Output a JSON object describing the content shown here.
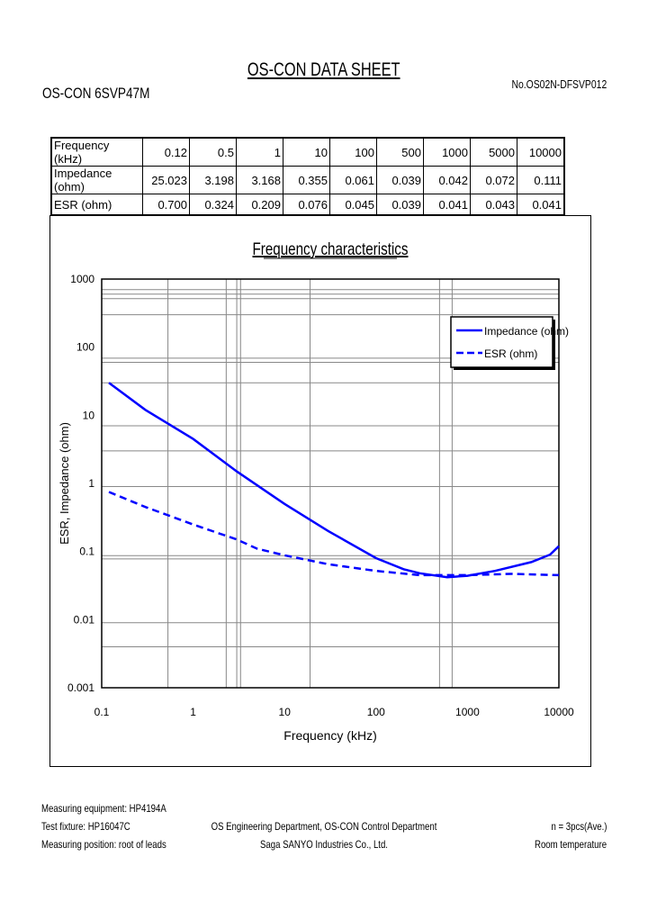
{
  "header": {
    "title": "OS-CON DATA SHEET",
    "model": "OS-CON 6SVP47M",
    "doc_no": "No.OS02N-DFSVP012"
  },
  "table": {
    "rows": [
      {
        "label": "Frequency (kHz)",
        "values": [
          "0.12",
          "0.5",
          "1",
          "10",
          "100",
          "500",
          "1000",
          "5000",
          "10000"
        ]
      },
      {
        "label": "Impedance (ohm)",
        "values": [
          "25.023",
          "3.198",
          "3.168",
          "0.355",
          "0.061",
          "0.039",
          "0.042",
          "0.072",
          "0.111"
        ]
      },
      {
        "label": "ESR (ohm)",
        "values": [
          "0.700",
          "0.324",
          "0.209",
          "0.076",
          "0.045",
          "0.039",
          "0.041",
          "0.043",
          "0.041"
        ]
      }
    ]
  },
  "chart_data": {
    "type": "line",
    "title": "Frequency characteristics",
    "xlabel": "Frequency (kHz)",
    "ylabel": "ESR, Impedance (ohm)",
    "xscale": "log",
    "yscale": "log",
    "xlim": [
      0.1,
      10000
    ],
    "ylim": [
      0.001,
      1000
    ],
    "xticks": [
      "0.1",
      "1",
      "10",
      "100",
      "1000",
      "10000"
    ],
    "yticks": [
      "1000",
      "100",
      "10",
      "1",
      "0.1",
      "0.01",
      "0.001"
    ],
    "grid": true,
    "legend": "top-right",
    "series": [
      {
        "name": "Impedance (ohm)",
        "style": "solid",
        "color": "#0000ff",
        "x": [
          0.12,
          0.3,
          1,
          3,
          10,
          30,
          100,
          200,
          300,
          600,
          1000,
          2000,
          5000,
          8000,
          10000
        ],
        "y": [
          30,
          12,
          4.5,
          1.5,
          0.5,
          0.2,
          0.08,
          0.055,
          0.048,
          0.042,
          0.044,
          0.052,
          0.07,
          0.09,
          0.12
        ]
      },
      {
        "name": "ESR (ohm)",
        "style": "dashed",
        "color": "#0000ff",
        "x": [
          0.12,
          0.3,
          1,
          3,
          5,
          10,
          30,
          100,
          300,
          1000,
          3000,
          10000
        ],
        "y": [
          0.75,
          0.45,
          0.25,
          0.15,
          0.11,
          0.088,
          0.065,
          0.052,
          0.045,
          0.045,
          0.047,
          0.045
        ]
      }
    ]
  },
  "footer": {
    "equipment": "Measuring equipment: HP4194A",
    "fixture": "Test fixture: HP16047C",
    "position": "Measuring position: root of leads",
    "department": "OS Engineering Department, OS-CON Control Department",
    "company": "Saga SANYO Industries Co., Ltd.",
    "samples": "n = 3pcs(Ave.)",
    "temperature": "Room temperature"
  }
}
